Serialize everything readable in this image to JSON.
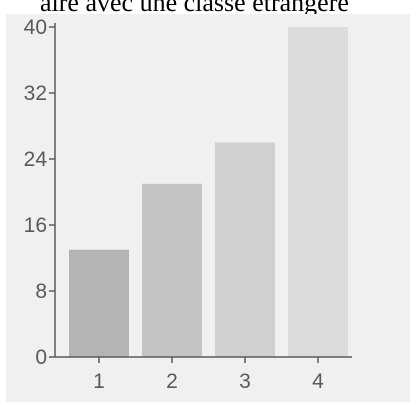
{
  "header": {
    "caption": "aire avec une classe étrangère"
  },
  "chart_data": {
    "type": "bar",
    "title": "",
    "xlabel": "",
    "ylabel": "",
    "categories": [
      "1",
      "2",
      "3",
      "4"
    ],
    "values": [
      13,
      21,
      26,
      40
    ],
    "ylim": [
      0,
      40
    ],
    "yticks": [
      "0",
      "8",
      "16",
      "24",
      "32",
      "40"
    ],
    "grid": false,
    "bar_colors": [
      "#b4b4b4",
      "#c4c4c4",
      "#d0d0d0",
      "#dcdcdc"
    ],
    "axis_color": "#5a5a5a"
  }
}
